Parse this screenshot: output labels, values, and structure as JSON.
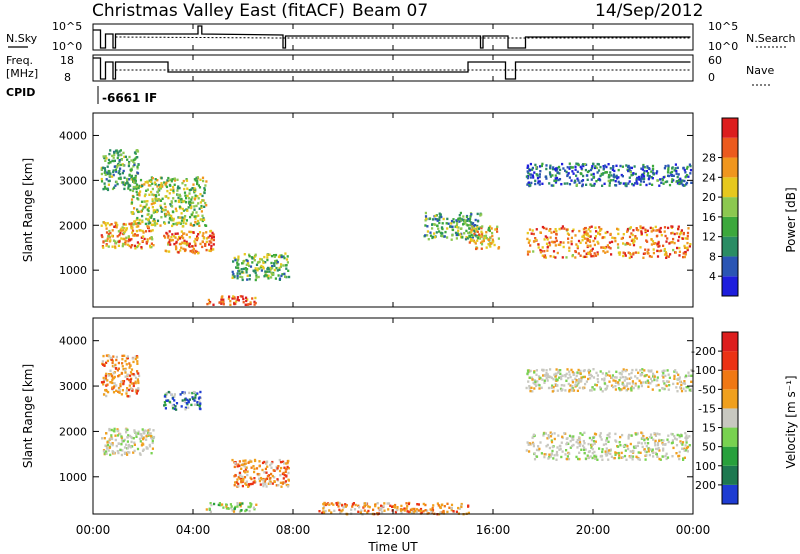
{
  "header": {
    "title": "Christmas Valley East (fitACF)",
    "beam": "Beam 07",
    "date": "14/Sep/2012"
  },
  "top_panels": {
    "nsky_label": "N.Sky",
    "nsky_ticks": [
      "10^5",
      "10^0"
    ],
    "nsearch_label": "N.Search",
    "nsearch_ticks": [
      "10^5",
      "10^0"
    ],
    "freq_label_1": "Freq.",
    "freq_label_2": "[MHz]",
    "freq_ticks": [
      "18",
      "8"
    ],
    "nave_label": "Nave",
    "nave_ticks": [
      "60",
      "0"
    ],
    "cpid_label": "CPID",
    "cpid_value": "-6661 IF"
  },
  "chart_data": [
    {
      "type": "heatmap",
      "name": "power",
      "ylabel": "Slant Range [km]",
      "ylim": [
        180,
        4500
      ],
      "yticks": [
        "1000",
        "2000",
        "3000",
        "4000"
      ],
      "colorbar_label": "Power [dB]",
      "colorbar_ticks": [
        "4",
        "8",
        "12",
        "16",
        "20",
        "24",
        "28"
      ],
      "colorbar_colors": [
        "#1e1edc",
        "#2a55b4",
        "#2a8c64",
        "#3ca83c",
        "#8cc850",
        "#e6c81e",
        "#f0961e",
        "#eb5a1e",
        "#dc1e1e"
      ],
      "regions": [
        {
          "t": [
            0.3,
            2.4
          ],
          "r": [
            1500,
            2100
          ],
          "level": 0.75
        },
        {
          "t": [
            0.3,
            1.8
          ],
          "r": [
            2800,
            3700
          ],
          "level": 0.35
        },
        {
          "t": [
            1.5,
            4.5
          ],
          "r": [
            2000,
            3100
          ],
          "level": 0.5
        },
        {
          "t": [
            2.8,
            4.8
          ],
          "r": [
            1400,
            1900
          ],
          "level": 0.8
        },
        {
          "t": [
            5.5,
            7.8
          ],
          "r": [
            800,
            1400
          ],
          "level": 0.4
        },
        {
          "t": [
            4.5,
            6.5
          ],
          "r": [
            250,
            450
          ],
          "level": 0.85
        },
        {
          "t": [
            13.2,
            15.5
          ],
          "r": [
            1700,
            2300
          ],
          "level": 0.35
        },
        {
          "t": [
            15.0,
            16.2
          ],
          "r": [
            1500,
            2000
          ],
          "level": 0.65
        },
        {
          "t": [
            17.3,
            23.9
          ],
          "r": [
            1300,
            2000
          ],
          "level": 0.8
        },
        {
          "t": [
            17.3,
            23.9
          ],
          "r": [
            2900,
            3400
          ],
          "level": 0.2
        }
      ]
    },
    {
      "type": "heatmap",
      "name": "velocity",
      "ylabel": "Slant Range [km]",
      "ylim": [
        180,
        4500
      ],
      "yticks": [
        "1000",
        "2000",
        "3000",
        "4000"
      ],
      "colorbar_label": "Velocity [m s⁻¹]",
      "colorbar_ticks": [
        "200",
        "100",
        "50",
        "15",
        "-15",
        "-50",
        "-100",
        "-200"
      ],
      "colorbar_colors": [
        "#1e3cd2",
        "#1e7850",
        "#28a03c",
        "#78d250",
        "#c8c8c0",
        "#f0a01e",
        "#f07814",
        "#eb3214",
        "#dc1e1e"
      ],
      "regions": [
        {
          "t": [
            0.3,
            2.4
          ],
          "r": [
            1500,
            2100
          ],
          "cat": "zero"
        },
        {
          "t": [
            0.3,
            1.8
          ],
          "r": [
            2800,
            3700
          ],
          "cat": "neg"
        },
        {
          "t": [
            2.8,
            4.3
          ],
          "r": [
            2500,
            2900
          ],
          "cat": "pos"
        },
        {
          "t": [
            5.5,
            7.8
          ],
          "r": [
            800,
            1400
          ],
          "cat": "neg"
        },
        {
          "t": [
            4.5,
            6.5
          ],
          "r": [
            250,
            450
          ],
          "cat": "green"
        },
        {
          "t": [
            9.0,
            15.0
          ],
          "r": [
            200,
            450
          ],
          "cat": "neg"
        },
        {
          "t": [
            17.3,
            23.9
          ],
          "r": [
            1400,
            2000
          ],
          "cat": "zero"
        },
        {
          "t": [
            17.3,
            23.9
          ],
          "r": [
            2900,
            3400
          ],
          "cat": "zero"
        }
      ]
    }
  ],
  "xaxis": {
    "label": "Time UT",
    "ticks": [
      "00:00",
      "04:00",
      "08:00",
      "12:00",
      "16:00",
      "20:00",
      "00:00"
    ]
  }
}
